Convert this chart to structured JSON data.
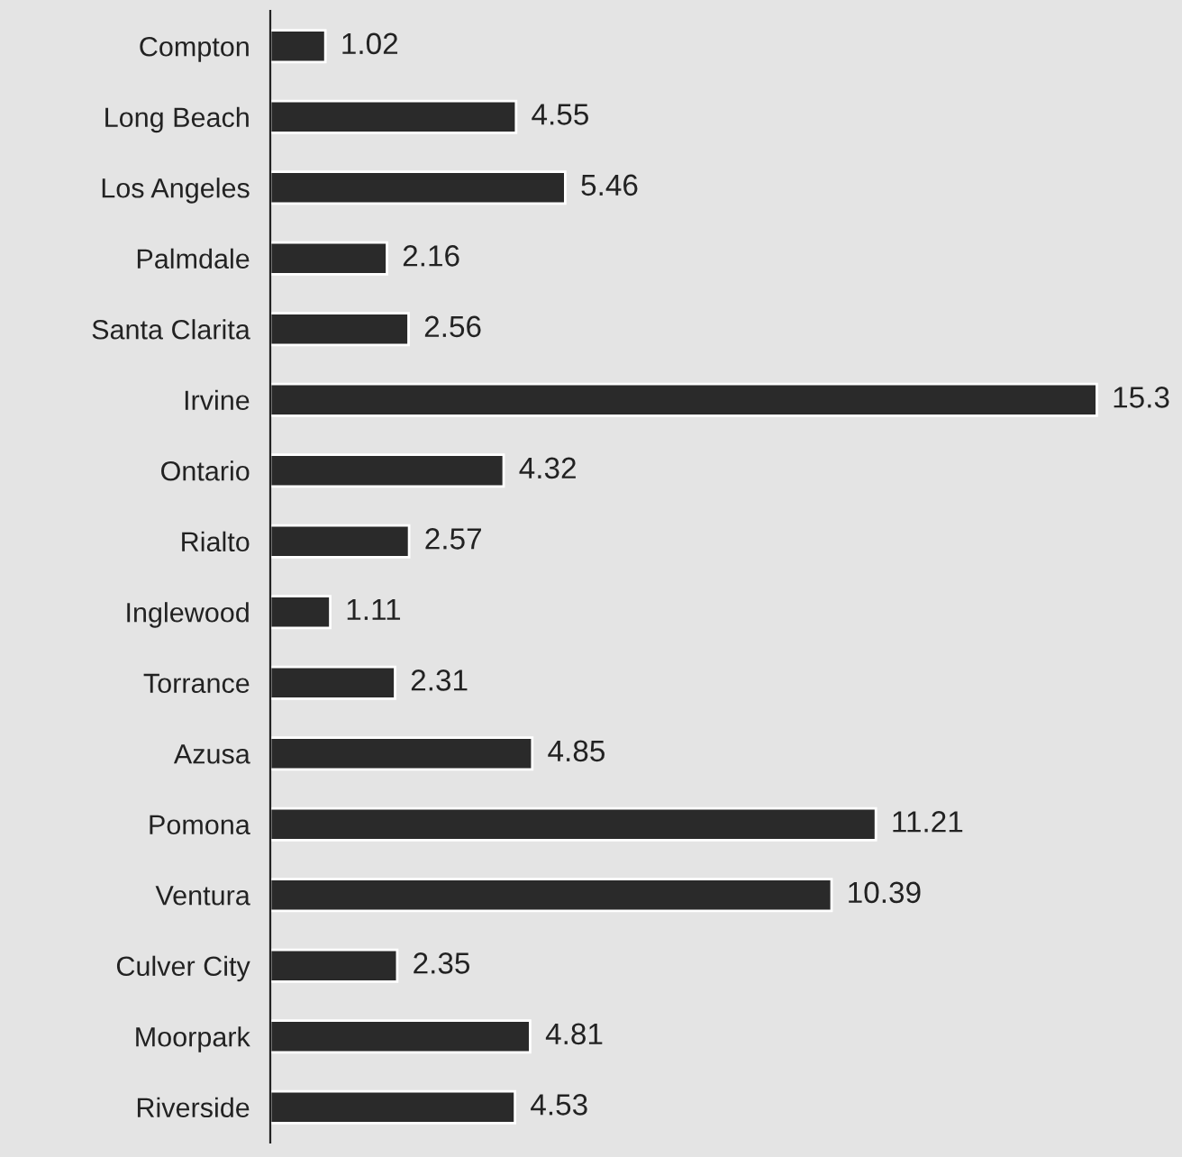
{
  "chart_data": {
    "type": "bar",
    "orientation": "horizontal",
    "data_labels": true,
    "grid": false,
    "legend": false,
    "categories": [
      "Compton",
      "Long Beach",
      "Los Angeles",
      "Palmdale",
      "Santa Clarita",
      "Irvine",
      "Ontario",
      "Rialto",
      "Inglewood",
      "Torrance",
      "Azusa",
      "Pomona",
      "Ventura",
      "Culver City",
      "Moorpark",
      "Riverside"
    ],
    "values": [
      1.02,
      4.55,
      5.46,
      2.16,
      2.56,
      15.3,
      4.32,
      2.57,
      1.11,
      2.31,
      4.85,
      11.21,
      10.39,
      2.35,
      4.81,
      4.53
    ],
    "color": "#2a2a2a",
    "tick_labels": "y"
  }
}
